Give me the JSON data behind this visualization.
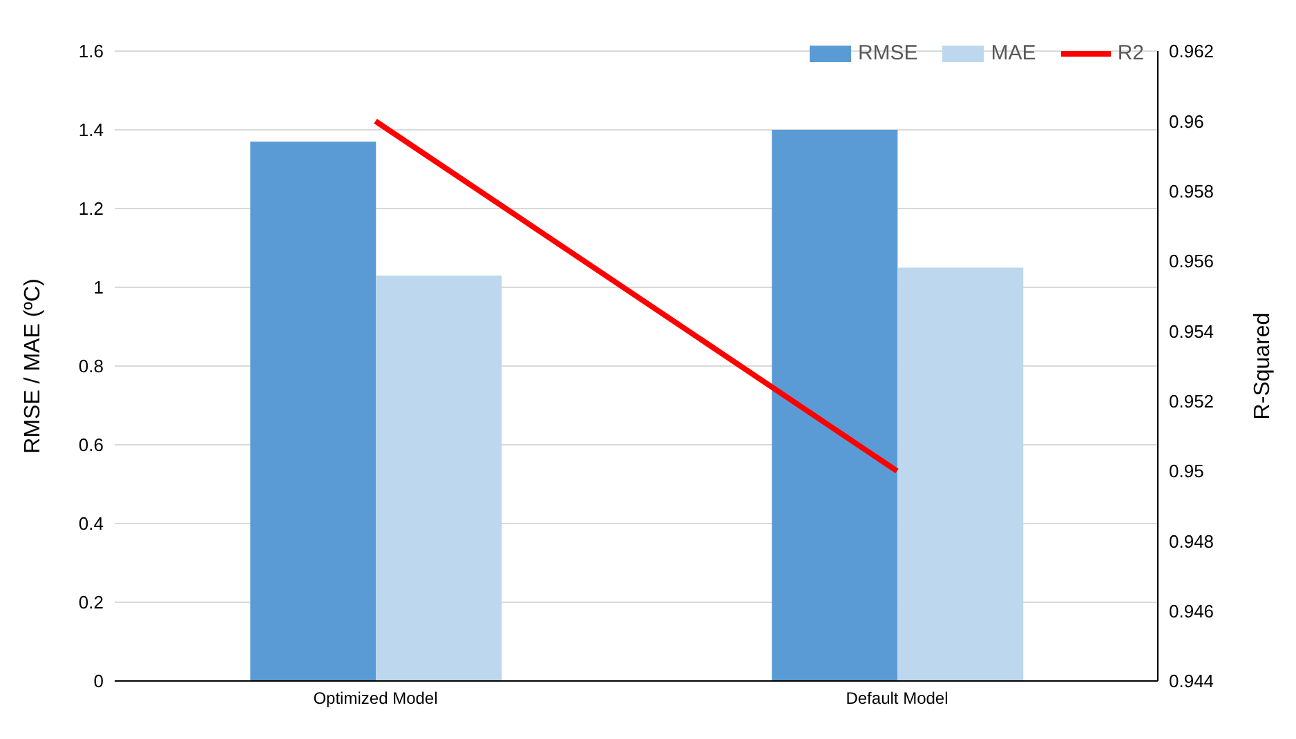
{
  "chart_data": {
    "type": "bar",
    "categories": [
      "Optimized Model",
      "Default Model"
    ],
    "series": [
      {
        "name": "RMSE",
        "color": "#5b9bd5",
        "values": [
          1.37,
          1.4
        ]
      },
      {
        "name": "MAE",
        "color": "#bdd7ee",
        "values": [
          1.03,
          1.05
        ]
      },
      {
        "name": "R2",
        "type": "line",
        "axis": "y2",
        "color": "#ff0000",
        "values": [
          0.96,
          0.95
        ],
        "marker": "none"
      }
    ],
    "ylabel": "RMSE / MAE (ºC)",
    "y2label": "R-Squared",
    "ylim": [
      0,
      1.6
    ],
    "yticks": [
      0,
      0.2,
      0.4,
      0.6,
      0.8,
      1,
      1.2,
      1.4,
      1.6
    ],
    "y2lim": [
      0.944,
      0.962
    ],
    "y2ticks": [
      0.944,
      0.946,
      0.948,
      0.95,
      0.952,
      0.954,
      0.956,
      0.958,
      0.96,
      0.962
    ],
    "grid": "y",
    "legend": "top right"
  }
}
